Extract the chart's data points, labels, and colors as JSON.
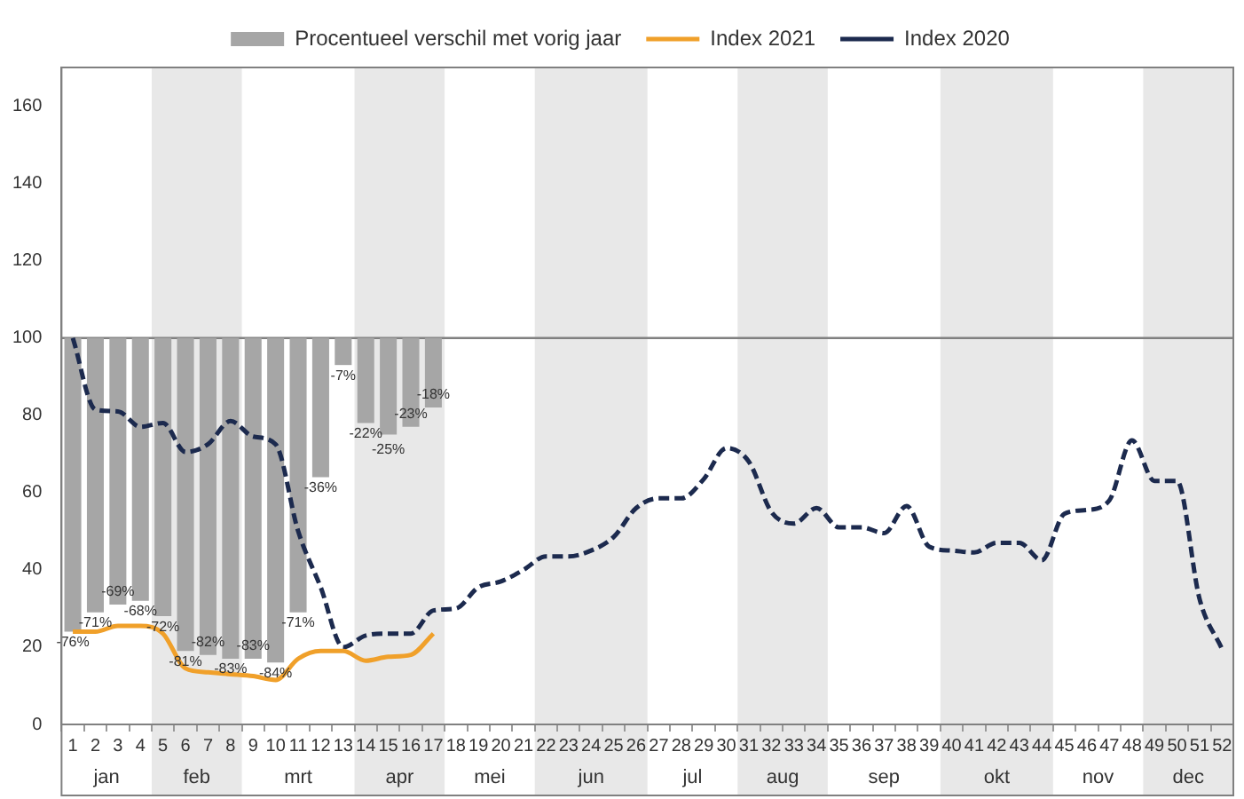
{
  "chart_data": {
    "type": "bar",
    "legend": "top",
    "grid": false,
    "marker": "none",
    "x": [
      1,
      2,
      3,
      4,
      5,
      6,
      7,
      8,
      9,
      10,
      11,
      12,
      13,
      14,
      15,
      16,
      17,
      18,
      19,
      20,
      21,
      22,
      23,
      24,
      25,
      26,
      27,
      28,
      29,
      30,
      31,
      32,
      33,
      34,
      35,
      36,
      37,
      38,
      39,
      40,
      41,
      42,
      43,
      44,
      45,
      46,
      47,
      48,
      49,
      50,
      51,
      52
    ],
    "xlim": [
      0.5,
      52.5
    ],
    "xticks": [
      1,
      2,
      3,
      4,
      5,
      6,
      7,
      8,
      9,
      10,
      11,
      12,
      13,
      14,
      15,
      16,
      17,
      18,
      19,
      20,
      21,
      22,
      23,
      24,
      25,
      26,
      27,
      28,
      29,
      30,
      31,
      32,
      33,
      34,
      35,
      36,
      37,
      38,
      39,
      40,
      41,
      42,
      43,
      44,
      45,
      46,
      47,
      48,
      49,
      50,
      51,
      52
    ],
    "ylim": [
      0,
      170
    ],
    "yticks": [
      0,
      20,
      40,
      60,
      80,
      100,
      120,
      140,
      160
    ],
    "series": [
      {
        "name": "Procentueel verschil met vorig jaar",
        "color": "#a6a6a6",
        "x": [
          1,
          2,
          3,
          4,
          5,
          6,
          7,
          8,
          9,
          10,
          11,
          12,
          13,
          14,
          15,
          16,
          17
        ],
        "base": [
          100,
          100,
          100,
          100,
          100,
          100,
          100,
          100,
          100,
          100,
          100,
          100,
          100,
          100,
          100,
          100,
          100
        ],
        "values": [
          -76,
          -71,
          -69,
          -68,
          -72,
          -81,
          -82,
          -83,
          -83,
          -84,
          -71,
          -36,
          -7,
          -22,
          -25,
          -23,
          -18
        ],
        "value_labels": [
          "-76%",
          "-71%",
          "-69%",
          "-68%",
          "-72%",
          "-81%",
          "-82%",
          "-83%",
          "-83%",
          "-84%",
          "-71%",
          "-36%",
          "-7%",
          "-22%",
          "-25%",
          "-23%",
          "-18%"
        ]
      },
      {
        "name": "Index 2021",
        "type": "line",
        "color": "#f0a02a",
        "line_style": "solid",
        "x": [
          1,
          2,
          3,
          4,
          5,
          6,
          7,
          8,
          9,
          10,
          11,
          12,
          13,
          14,
          15,
          16,
          17
        ],
        "values": [
          24,
          24,
          25.5,
          25.5,
          23.5,
          14.5,
          13.5,
          13,
          12.5,
          11.5,
          17,
          19,
          19,
          16.5,
          17.5,
          18,
          23.5
        ]
      },
      {
        "name": "Index 2020",
        "type": "line",
        "color": "#1c2a4e",
        "line_style": "dashed",
        "values": [
          100,
          81.5,
          81,
          77,
          78,
          70.5,
          72.5,
          78.5,
          74.5,
          72.5,
          50,
          35.5,
          20,
          23,
          23.5,
          23.5,
          29.5,
          30,
          35.5,
          37,
          40,
          43.5,
          43.5,
          45,
          48.5,
          56,
          58.5,
          58.5,
          63.5,
          71.5,
          68,
          55,
          52,
          56,
          51,
          51,
          49.5,
          56.5,
          46,
          45,
          44.5,
          47,
          47,
          42.5,
          54.5,
          55.5,
          58,
          73.5,
          63,
          63,
          32.5,
          19.5
        ]
      }
    ],
    "ref_lines": [
      {
        "axis": "y",
        "value": 100,
        "color": "#808080"
      }
    ],
    "bands": [
      {
        "axis": "x",
        "from": 4.5,
        "to": 8.5,
        "label": "feb",
        "color": "#e8e8e8"
      },
      {
        "axis": "x",
        "from": 13.5,
        "to": 17.5,
        "label": "apr",
        "color": "#e8e8e8"
      },
      {
        "axis": "x",
        "from": 21.5,
        "to": 26.5,
        "label": "jun",
        "color": "#e8e8e8"
      },
      {
        "axis": "x",
        "from": 30.5,
        "to": 34.5,
        "label": "aug",
        "color": "#e8e8e8"
      },
      {
        "axis": "x",
        "from": 39.5,
        "to": 44.5,
        "label": "okt",
        "color": "#e8e8e8"
      },
      {
        "axis": "x",
        "from": 48.5,
        "to": 52.5,
        "label": "dec",
        "color": "#e8e8e8"
      }
    ],
    "annotations": [
      "jan",
      "mrt",
      "mei",
      "jul",
      "sep",
      "nov"
    ]
  }
}
